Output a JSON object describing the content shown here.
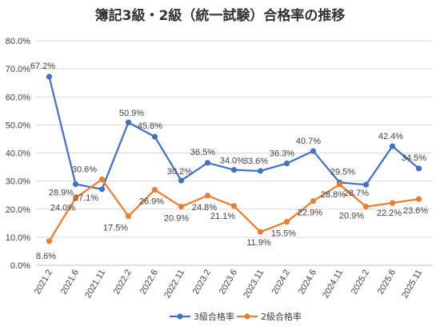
{
  "chart_data": {
    "type": "line",
    "title": "簿記3級・2級（統一試験）合格率の推移",
    "xlabel": "",
    "ylabel": "",
    "ylim": [
      0,
      80
    ],
    "yticks": [
      "0.0%",
      "10.0%",
      "20.0%",
      "30.0%",
      "40.0%",
      "50.0%",
      "60.0%",
      "70.0%",
      "80.0%"
    ],
    "grid": true,
    "legend": "bottom",
    "categories": [
      "2021.2",
      "2021.6",
      "2021.11",
      "2022.2",
      "2022.6",
      "2022.11",
      "2023.2",
      "2023.6",
      "2023.11",
      "2024.2",
      "2024.6",
      "2024.11",
      "2025.2",
      "2025.6",
      "2025.11"
    ],
    "series": [
      {
        "name": "3級合格率",
        "color": "#4472C4",
        "values": [
          67.2,
          28.9,
          27.1,
          50.9,
          45.8,
          30.2,
          36.5,
          34.0,
          33.6,
          36.3,
          40.7,
          29.5,
          28.7,
          42.4,
          34.5
        ],
        "labels": [
          "67.2%",
          "28.9%",
          "27.1%",
          "50.9%",
          "45.8%",
          "30.2%",
          "36.5%",
          "34.0%",
          "33.6%",
          "36.3%",
          "40.7%",
          "29.5%",
          "28.7%",
          "42.4%",
          "34.5%"
        ]
      },
      {
        "name": "2級合格率",
        "color": "#ED7D31",
        "values": [
          8.6,
          24.0,
          30.6,
          17.5,
          26.9,
          20.9,
          24.8,
          21.1,
          11.9,
          15.5,
          22.9,
          28.8,
          20.9,
          22.2,
          23.6
        ],
        "labels": [
          "8.6%",
          "24.0%",
          "30.6%",
          "17.5%",
          "26.9%",
          "20.9%",
          "24.8%",
          "21.1%",
          "11.9%",
          "15.5%",
          "22.9%",
          "28.8%",
          "20.9%",
          "22.2%",
          "23.6%"
        ]
      }
    ]
  }
}
